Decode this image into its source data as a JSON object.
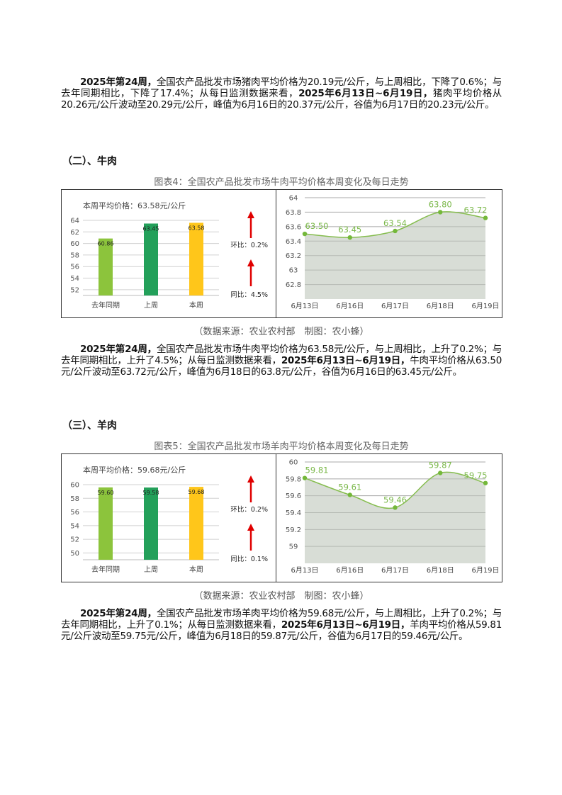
{
  "intro": {
    "runs": [
      {
        "text": "2025年第24周，",
        "bold": true
      },
      {
        "text": "全国农产品批发市场猪肉平均价格为20.19元/公斤，与上周相比，下降了0.6%；与去年同期相比，下降了17.4%；从每日监测数据来看，",
        "bold": false
      },
      {
        "text": "2025年6月13日~6月19日，",
        "bold": true
      },
      {
        "text": "猪肉平均价格从20.26元/公斤波动至20.29元/公斤，峰值为6月16日的20.37元/公斤，谷值为6月17日的20.23元/公斤。",
        "bold": false
      }
    ]
  },
  "sections": [
    {
      "heading": "（二）、牛肉",
      "caption": "图表4：全国农产品批发市场牛肉平均价格本周变化及每日走势",
      "bar": {
        "type": "bar",
        "label": "本周平均价格：63.58元/公斤",
        "categories": [
          "去年同期",
          "上周",
          "本周"
        ],
        "values": [
          60.86,
          63.45,
          63.58
        ],
        "colors": [
          "#8cc43c",
          "#23a05a",
          "#ffc61a"
        ],
        "ylim": [
          51,
          64
        ],
        "yticks": [
          52,
          54,
          56,
          58,
          60,
          62,
          64
        ],
        "grid": true,
        "changes": [
          {
            "label": "环比：0.2%",
            "direction": "up"
          },
          {
            "label": "同比：4.5%",
            "direction": "up"
          }
        ]
      },
      "line": {
        "type": "line",
        "categories": [
          "6月13日",
          "6月16日",
          "6月17日",
          "6月18日",
          "6月19日"
        ],
        "values": [
          63.5,
          63.45,
          63.54,
          63.8,
          63.72
        ],
        "value_labels": [
          "63.50",
          "63.45",
          "63.54",
          "63.80",
          "63.72"
        ],
        "color": "#86bd4f",
        "ylim": [
          62.6,
          64
        ],
        "yticks": [
          62.8,
          63,
          63.2,
          63.4,
          63.6,
          63.8,
          64
        ],
        "grid": true
      },
      "source": "（数据来源：农业农村部　制图：农小蜂）",
      "text": {
        "runs": [
          {
            "text": "2025年第24周，",
            "bold": true
          },
          {
            "text": "全国农产品批发市场牛肉平均价格为63.58元/公斤，与上周相比，上升了0.2%；与去年同期相比，上升了4.5%；从每日监测数据来看，",
            "bold": false
          },
          {
            "text": "2025年6月13日~6月19日，",
            "bold": true
          },
          {
            "text": "牛肉平均价格从63.50元/公斤波动至63.72元/公斤，峰值为6月18日的63.8元/公斤，谷值为6月16日的63.45元/公斤。",
            "bold": false
          }
        ]
      }
    },
    {
      "heading": "（三）、羊肉",
      "caption": "图表5：全国农产品批发市场羊肉平均价格本周变化及每日走势",
      "bar": {
        "type": "bar",
        "label": "本周平均价格：59.68元/公斤",
        "categories": [
          "去年同期",
          "上周",
          "本周"
        ],
        "values": [
          59.6,
          59.58,
          59.68
        ],
        "value_labels": [
          "59.60",
          "59.58",
          "59.68"
        ],
        "colors": [
          "#8cc43c",
          "#23a05a",
          "#ffc61a"
        ],
        "ylim": [
          49,
          60
        ],
        "yticks": [
          50,
          52,
          54,
          56,
          58,
          60
        ],
        "grid": true,
        "changes": [
          {
            "label": "环比：0.2%",
            "direction": "up"
          },
          {
            "label": "同比：0.1%",
            "direction": "up"
          }
        ]
      },
      "line": {
        "type": "line",
        "categories": [
          "6月13日",
          "6月16日",
          "6月17日",
          "6月18日",
          "6月19日"
        ],
        "values": [
          59.81,
          59.61,
          59.46,
          59.87,
          59.75
        ],
        "color": "#86bd4f",
        "ylim": [
          58.8,
          60
        ],
        "yticks": [
          59,
          59.2,
          59.4,
          59.6,
          59.8,
          60
        ],
        "grid": true
      },
      "source": "（数据来源：农业农村部　制图：农小蜂）",
      "text": {
        "runs": [
          {
            "text": "2025年第24周，",
            "bold": true
          },
          {
            "text": "全国农产品批发市场羊肉平均价格为59.68元/公斤，与上周相比，上升了0.2%；与去年同期相比，上升了0.1%；从每日监测数据来看，",
            "bold": false
          },
          {
            "text": "2025年6月13日~6月19日，",
            "bold": true
          },
          {
            "text": "羊肉平均价格从59.81元/公斤波动至59.75元/公斤，峰值为6月18日的59.87元/公斤，谷值为6月17日的59.46元/公斤。",
            "bold": false
          }
        ]
      }
    }
  ]
}
